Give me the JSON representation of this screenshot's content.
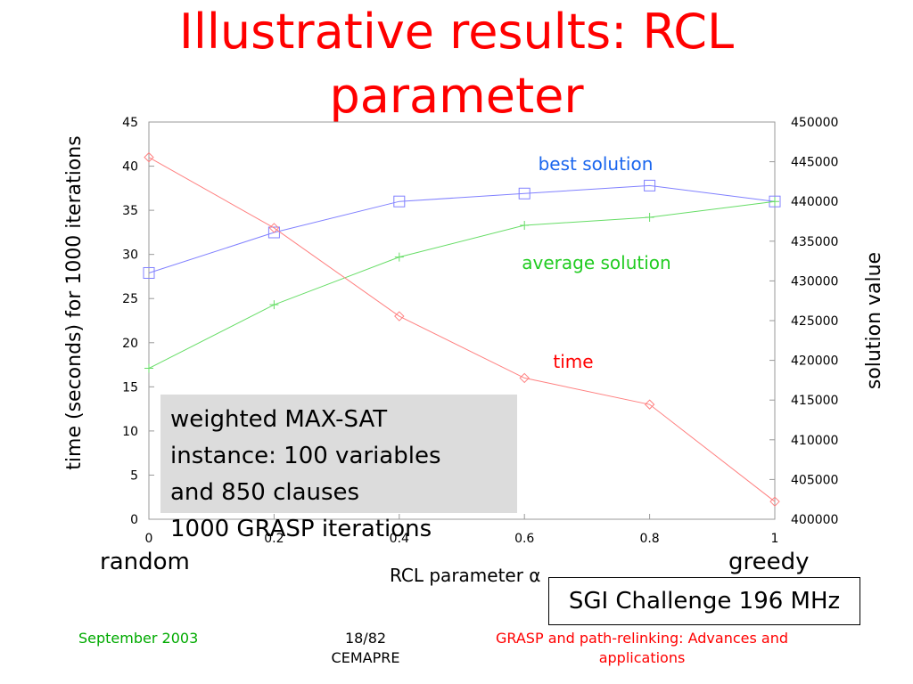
{
  "slide": {
    "title_line1": "Illustrative results: RCL",
    "title_line2": "parameter",
    "info_lines": [
      "weighted MAX-SAT",
      "instance: 100 variables",
      "and 850 clauses",
      "1000 GRASP iterations"
    ],
    "random_label": "random",
    "greedy_label": "greedy",
    "machine": "SGI Challenge 196 MHz",
    "footer_left": "September 2003",
    "footer_center_line1": "18/82",
    "footer_center_line2": "CEMAPRE",
    "footer_right_line1": "GRASP and path-relinking: Advances and",
    "footer_right_line2": "applications"
  },
  "chart_data": {
    "type": "line",
    "title": "",
    "xlabel": "RCL parameter α",
    "ylabel_left": "time (seconds) for 1000 iterations",
    "ylabel_right": "solution value",
    "xlim": [
      0,
      1
    ],
    "ylim_left": [
      0,
      45
    ],
    "ylim_right": [
      400000,
      450000
    ],
    "x_ticks": [
      "0",
      "0.2",
      "0.4",
      "0.6",
      "0.8",
      "1"
    ],
    "y_left_ticks": [
      "0",
      "5",
      "10",
      "15",
      "20",
      "25",
      "30",
      "35",
      "40",
      "45"
    ],
    "y_right_ticks": [
      "400000",
      "405000",
      "410000",
      "415000",
      "420000",
      "425000",
      "430000",
      "435000",
      "440000",
      "445000",
      "450000"
    ],
    "grid": false,
    "series": [
      {
        "name": "best solution",
        "axis": "right",
        "marker": "square",
        "color": "#8080ff",
        "label_color": "#1a66ee",
        "x": [
          0,
          0.2,
          0.4,
          0.6,
          0.8,
          1.0
        ],
        "values": [
          431000,
          436100,
          440000,
          441000,
          442000,
          440000
        ]
      },
      {
        "name": "average solution",
        "axis": "right",
        "marker": "plus",
        "color": "#66dd66",
        "label_color": "#22cc22",
        "x": [
          0,
          0.2,
          0.4,
          0.6,
          0.8,
          1.0
        ],
        "values": [
          419000,
          427000,
          433000,
          437000,
          438000,
          440000
        ]
      },
      {
        "name": "time",
        "axis": "left",
        "marker": "diamond",
        "color": "#ff8080",
        "label_color": "#ff0000",
        "x": [
          0,
          0.2,
          0.4,
          0.6,
          0.8,
          1.0
        ],
        "values": [
          41,
          33,
          23,
          16,
          13,
          2
        ]
      }
    ]
  }
}
